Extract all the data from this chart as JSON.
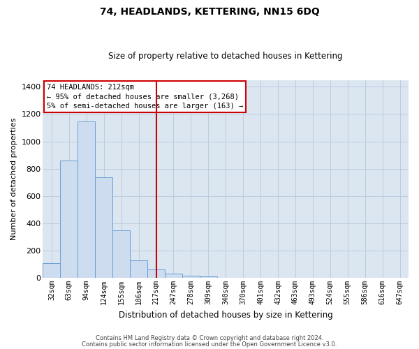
{
  "title": "74, HEADLANDS, KETTERING, NN15 6DQ",
  "subtitle": "Size of property relative to detached houses in Kettering",
  "xlabel": "Distribution of detached houses by size in Kettering",
  "ylabel": "Number of detached properties",
  "footnote1": "Contains HM Land Registry data © Crown copyright and database right 2024.",
  "footnote2": "Contains public sector information licensed under the Open Government Licence v3.0.",
  "bar_labels": [
    "32sqm",
    "63sqm",
    "94sqm",
    "124sqm",
    "155sqm",
    "186sqm",
    "217sqm",
    "247sqm",
    "278sqm",
    "309sqm",
    "340sqm",
    "370sqm",
    "401sqm",
    "432sqm",
    "463sqm",
    "493sqm",
    "524sqm",
    "555sqm",
    "586sqm",
    "616sqm",
    "647sqm"
  ],
  "bar_values": [
    107,
    860,
    1145,
    735,
    348,
    130,
    60,
    33,
    18,
    10,
    0,
    0,
    0,
    0,
    0,
    0,
    0,
    0,
    0,
    0,
    0
  ],
  "bar_color": "#cddcee",
  "bar_edge_color": "#6a9fd8",
  "vline_x": 6,
  "vline_color": "#cc0000",
  "annotation_text": "74 HEADLANDS: 212sqm\n← 95% of detached houses are smaller (3,268)\n5% of semi-detached houses are larger (163) →",
  "annotation_box_color": "#ffffff",
  "annotation_box_edge": "#cc0000",
  "ylim": [
    0,
    1450
  ],
  "yticks": [
    0,
    200,
    400,
    600,
    800,
    1000,
    1200,
    1400
  ],
  "bg_color": "#dce6f1",
  "plot_bg_color": "#ffffff",
  "grid_color": "#b8c8dc"
}
